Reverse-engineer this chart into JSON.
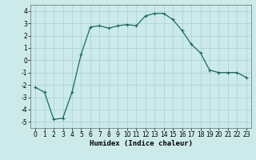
{
  "x": [
    0,
    1,
    2,
    3,
    4,
    5,
    6,
    7,
    8,
    9,
    10,
    11,
    12,
    13,
    14,
    15,
    16,
    17,
    18,
    19,
    20,
    21,
    22,
    23
  ],
  "y": [
    -2.2,
    -2.6,
    -4.8,
    -4.7,
    -2.6,
    0.5,
    2.7,
    2.8,
    2.6,
    2.8,
    2.9,
    2.8,
    3.6,
    3.8,
    3.8,
    3.3,
    2.4,
    1.3,
    0.6,
    -0.8,
    -1.0,
    -1.0,
    -1.0,
    -1.4
  ],
  "xlabel": "Humidex (Indice chaleur)",
  "line_color": "#1a6b5a",
  "marker": "+",
  "marker_size": 3,
  "line_width": 0.9,
  "bg_color": "#cceaea",
  "grid_color": "#aad4d4",
  "xlim": [
    -0.5,
    23.5
  ],
  "ylim": [
    -5.5,
    4.5
  ],
  "yticks": [
    -5,
    -4,
    -3,
    -2,
    -1,
    0,
    1,
    2,
    3,
    4
  ],
  "xticks": [
    0,
    1,
    2,
    3,
    4,
    5,
    6,
    7,
    8,
    9,
    10,
    11,
    12,
    13,
    14,
    15,
    16,
    17,
    18,
    19,
    20,
    21,
    22,
    23
  ],
  "xlabel_fontsize": 6.5,
  "tick_fontsize": 5.5
}
